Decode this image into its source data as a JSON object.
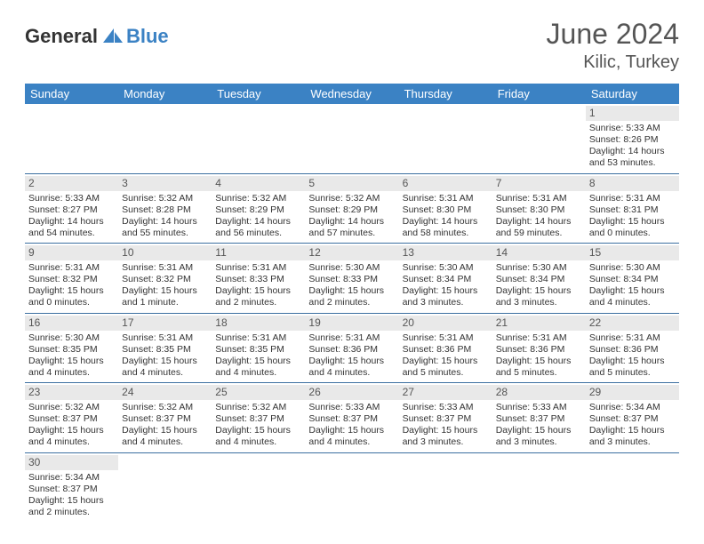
{
  "logo": {
    "text1": "General",
    "text2": "Blue",
    "icon_color": "#3b82c4"
  },
  "title": "June 2024",
  "location": "Kilic, Turkey",
  "header_bg": "#3b82c4",
  "header_fg": "#ffffff",
  "daynum_bg": "#e9e9e9",
  "border_color": "#3b6fa0",
  "days_of_week": [
    "Sunday",
    "Monday",
    "Tuesday",
    "Wednesday",
    "Thursday",
    "Friday",
    "Saturday"
  ],
  "weeks": [
    [
      null,
      null,
      null,
      null,
      null,
      null,
      {
        "n": "1",
        "sunrise": "5:33 AM",
        "sunset": "8:26 PM",
        "daylight": "14 hours and 53 minutes."
      }
    ],
    [
      {
        "n": "2",
        "sunrise": "5:33 AM",
        "sunset": "8:27 PM",
        "daylight": "14 hours and 54 minutes."
      },
      {
        "n": "3",
        "sunrise": "5:32 AM",
        "sunset": "8:28 PM",
        "daylight": "14 hours and 55 minutes."
      },
      {
        "n": "4",
        "sunrise": "5:32 AM",
        "sunset": "8:29 PM",
        "daylight": "14 hours and 56 minutes."
      },
      {
        "n": "5",
        "sunrise": "5:32 AM",
        "sunset": "8:29 PM",
        "daylight": "14 hours and 57 minutes."
      },
      {
        "n": "6",
        "sunrise": "5:31 AM",
        "sunset": "8:30 PM",
        "daylight": "14 hours and 58 minutes."
      },
      {
        "n": "7",
        "sunrise": "5:31 AM",
        "sunset": "8:30 PM",
        "daylight": "14 hours and 59 minutes."
      },
      {
        "n": "8",
        "sunrise": "5:31 AM",
        "sunset": "8:31 PM",
        "daylight": "15 hours and 0 minutes."
      }
    ],
    [
      {
        "n": "9",
        "sunrise": "5:31 AM",
        "sunset": "8:32 PM",
        "daylight": "15 hours and 0 minutes."
      },
      {
        "n": "10",
        "sunrise": "5:31 AM",
        "sunset": "8:32 PM",
        "daylight": "15 hours and 1 minute."
      },
      {
        "n": "11",
        "sunrise": "5:31 AM",
        "sunset": "8:33 PM",
        "daylight": "15 hours and 2 minutes."
      },
      {
        "n": "12",
        "sunrise": "5:30 AM",
        "sunset": "8:33 PM",
        "daylight": "15 hours and 2 minutes."
      },
      {
        "n": "13",
        "sunrise": "5:30 AM",
        "sunset": "8:34 PM",
        "daylight": "15 hours and 3 minutes."
      },
      {
        "n": "14",
        "sunrise": "5:30 AM",
        "sunset": "8:34 PM",
        "daylight": "15 hours and 3 minutes."
      },
      {
        "n": "15",
        "sunrise": "5:30 AM",
        "sunset": "8:34 PM",
        "daylight": "15 hours and 4 minutes."
      }
    ],
    [
      {
        "n": "16",
        "sunrise": "5:30 AM",
        "sunset": "8:35 PM",
        "daylight": "15 hours and 4 minutes."
      },
      {
        "n": "17",
        "sunrise": "5:31 AM",
        "sunset": "8:35 PM",
        "daylight": "15 hours and 4 minutes."
      },
      {
        "n": "18",
        "sunrise": "5:31 AM",
        "sunset": "8:35 PM",
        "daylight": "15 hours and 4 minutes."
      },
      {
        "n": "19",
        "sunrise": "5:31 AM",
        "sunset": "8:36 PM",
        "daylight": "15 hours and 4 minutes."
      },
      {
        "n": "20",
        "sunrise": "5:31 AM",
        "sunset": "8:36 PM",
        "daylight": "15 hours and 5 minutes."
      },
      {
        "n": "21",
        "sunrise": "5:31 AM",
        "sunset": "8:36 PM",
        "daylight": "15 hours and 5 minutes."
      },
      {
        "n": "22",
        "sunrise": "5:31 AM",
        "sunset": "8:36 PM",
        "daylight": "15 hours and 5 minutes."
      }
    ],
    [
      {
        "n": "23",
        "sunrise": "5:32 AM",
        "sunset": "8:37 PM",
        "daylight": "15 hours and 4 minutes."
      },
      {
        "n": "24",
        "sunrise": "5:32 AM",
        "sunset": "8:37 PM",
        "daylight": "15 hours and 4 minutes."
      },
      {
        "n": "25",
        "sunrise": "5:32 AM",
        "sunset": "8:37 PM",
        "daylight": "15 hours and 4 minutes."
      },
      {
        "n": "26",
        "sunrise": "5:33 AM",
        "sunset": "8:37 PM",
        "daylight": "15 hours and 4 minutes."
      },
      {
        "n": "27",
        "sunrise": "5:33 AM",
        "sunset": "8:37 PM",
        "daylight": "15 hours and 3 minutes."
      },
      {
        "n": "28",
        "sunrise": "5:33 AM",
        "sunset": "8:37 PM",
        "daylight": "15 hours and 3 minutes."
      },
      {
        "n": "29",
        "sunrise": "5:34 AM",
        "sunset": "8:37 PM",
        "daylight": "15 hours and 3 minutes."
      }
    ],
    [
      {
        "n": "30",
        "sunrise": "5:34 AM",
        "sunset": "8:37 PM",
        "daylight": "15 hours and 2 minutes."
      },
      null,
      null,
      null,
      null,
      null,
      null
    ]
  ],
  "labels": {
    "sunrise": "Sunrise:",
    "sunset": "Sunset:",
    "daylight": "Daylight:"
  }
}
